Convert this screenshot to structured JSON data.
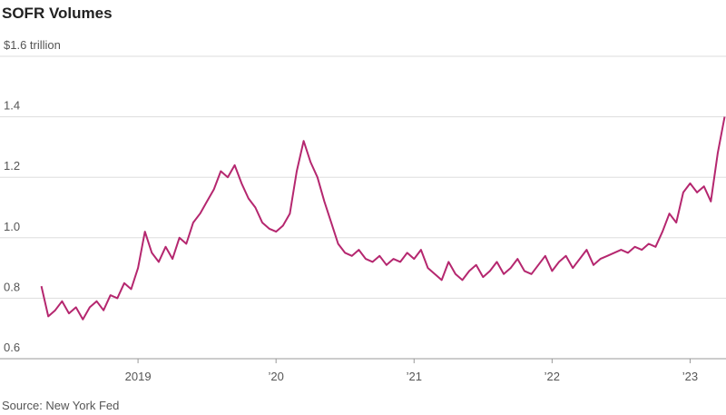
{
  "chart_data": {
    "type": "line",
    "title": "SOFR Volumes",
    "source": "Source: New York Fed",
    "x": [
      2018.3,
      2018.35,
      2018.4,
      2018.45,
      2018.5,
      2018.55,
      2018.6,
      2018.65,
      2018.7,
      2018.75,
      2018.8,
      2018.85,
      2018.9,
      2018.95,
      2019.0,
      2019.05,
      2019.1,
      2019.15,
      2019.2,
      2019.25,
      2019.3,
      2019.35,
      2019.4,
      2019.45,
      2019.5,
      2019.55,
      2019.6,
      2019.65,
      2019.7,
      2019.75,
      2019.8,
      2019.85,
      2019.9,
      2019.95,
      2020.0,
      2020.05,
      2020.1,
      2020.15,
      2020.2,
      2020.25,
      2020.3,
      2020.35,
      2020.4,
      2020.45,
      2020.5,
      2020.55,
      2020.6,
      2020.65,
      2020.7,
      2020.75,
      2020.8,
      2020.85,
      2020.9,
      2020.95,
      2021.0,
      2021.05,
      2021.1,
      2021.15,
      2021.2,
      2021.25,
      2021.3,
      2021.35,
      2021.4,
      2021.45,
      2021.5,
      2021.55,
      2021.6,
      2021.65,
      2021.7,
      2021.75,
      2021.8,
      2021.85,
      2021.9,
      2021.95,
      2022.0,
      2022.05,
      2022.1,
      2022.15,
      2022.2,
      2022.25,
      2022.3,
      2022.35,
      2022.4,
      2022.45,
      2022.5,
      2022.55,
      2022.6,
      2022.65,
      2022.7,
      2022.75,
      2022.8,
      2022.85,
      2022.9,
      2022.95,
      2023.0,
      2023.05,
      2023.1,
      2023.15,
      2023.2,
      2023.25
    ],
    "series": [
      {
        "name": "SOFR volume",
        "color": "#b5276f",
        "values": [
          0.84,
          0.74,
          0.76,
          0.79,
          0.75,
          0.77,
          0.73,
          0.77,
          0.79,
          0.76,
          0.81,
          0.8,
          0.85,
          0.83,
          0.9,
          1.02,
          0.95,
          0.92,
          0.97,
          0.93,
          1.0,
          0.98,
          1.05,
          1.08,
          1.12,
          1.16,
          1.22,
          1.2,
          1.24,
          1.18,
          1.13,
          1.1,
          1.05,
          1.03,
          1.02,
          1.04,
          1.08,
          1.22,
          1.32,
          1.25,
          1.2,
          1.12,
          1.05,
          0.98,
          0.95,
          0.94,
          0.96,
          0.93,
          0.92,
          0.94,
          0.91,
          0.93,
          0.92,
          0.95,
          0.93,
          0.96,
          0.9,
          0.88,
          0.86,
          0.92,
          0.88,
          0.86,
          0.89,
          0.91,
          0.87,
          0.89,
          0.92,
          0.88,
          0.9,
          0.93,
          0.89,
          0.88,
          0.91,
          0.94,
          0.89,
          0.92,
          0.94,
          0.9,
          0.93,
          0.96,
          0.91,
          0.93,
          0.94,
          0.95,
          0.96,
          0.95,
          0.97,
          0.96,
          0.98,
          0.97,
          1.02,
          1.08,
          1.05,
          1.15,
          1.18,
          1.15,
          1.17,
          1.12,
          1.28,
          1.4
        ]
      }
    ],
    "xlim": [
      2018,
      2023.26
    ],
    "xticks": [
      {
        "value": 2019,
        "label": "2019"
      },
      {
        "value": 2020,
        "label": "’20"
      },
      {
        "value": 2021,
        "label": "’21"
      },
      {
        "value": 2022,
        "label": "’22"
      },
      {
        "value": 2023,
        "label": "’23"
      }
    ],
    "ylim": [
      0.6,
      1.6
    ],
    "yticks": [
      0.6,
      0.8,
      {
        "value": 1,
        "label": "1.0"
      },
      1.2,
      1.4,
      {
        "value": 1.6,
        "label": "$1.6 trillion"
      }
    ],
    "grid": true
  }
}
